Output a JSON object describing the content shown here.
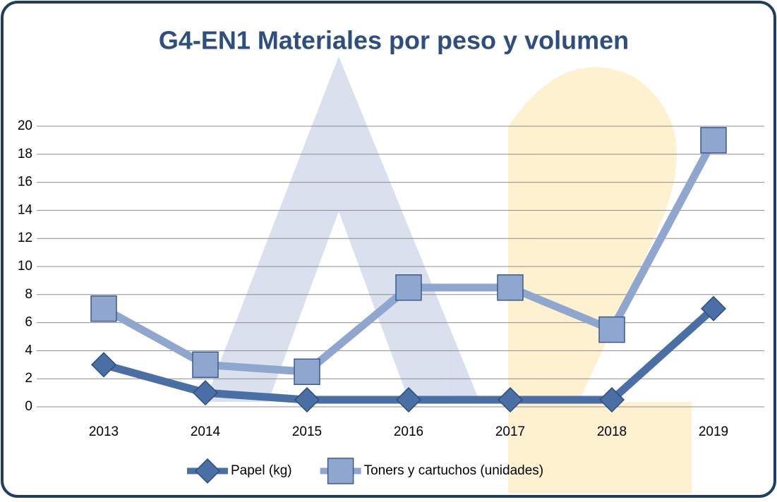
{
  "chart_data": {
    "type": "line",
    "title": "G4-EN1 Materiales por peso y volumen",
    "categories": [
      "2013",
      "2014",
      "2015",
      "2016",
      "2017",
      "2018",
      "2019"
    ],
    "series": [
      {
        "name": "Papel (kg)",
        "color": "#4a6fa5",
        "marker": "diamond",
        "values": [
          3,
          1,
          0.5,
          0.5,
          0.5,
          0.5,
          7
        ]
      },
      {
        "name": "Toners y cartuchos (unidades)",
        "color": "#8fa6cf",
        "marker": "square",
        "values": [
          7,
          3,
          2.5,
          8.5,
          8.5,
          5.5,
          19
        ]
      }
    ],
    "ylim": [
      0,
      20
    ],
    "yticks": [
      0,
      2,
      4,
      6,
      8,
      10,
      12,
      14,
      16,
      18,
      20
    ],
    "grid": true,
    "legend": "bottom"
  }
}
